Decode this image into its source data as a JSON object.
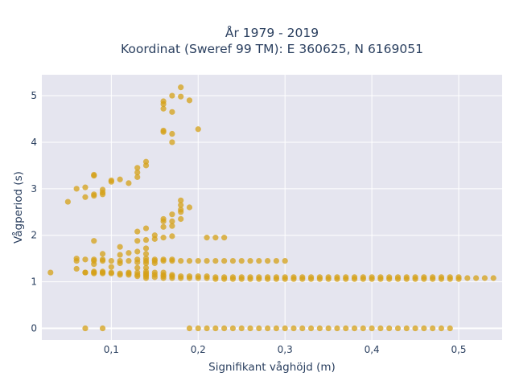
{
  "chart_data": {
    "type": "scatter",
    "title_line1": "År 1979 - 2019",
    "title_line2": "Koordinat (Sweref 99 TM): E 360625, N 6169051",
    "xlabel": "Signifikant våghöjd (m)",
    "ylabel": "Vågperiod (s)",
    "xlim": [
      0.02,
      0.55
    ],
    "ylim": [
      -0.25,
      5.45
    ],
    "x_ticks": [
      0.1,
      0.2,
      0.3,
      0.4,
      0.5
    ],
    "x_tick_labels": [
      "0,1",
      "0,2",
      "0,3",
      "0,4",
      "0,5"
    ],
    "y_ticks": [
      0,
      1,
      2,
      3,
      4,
      5
    ],
    "y_tick_labels": [
      "0",
      "1",
      "2",
      "3",
      "4",
      "5"
    ],
    "colors": {
      "marker": "#D4A017",
      "plot_bg": "#E5E5EF",
      "grid": "#FFFFFF"
    },
    "grid": true,
    "series": [
      {
        "points": [
          [
            0.03,
            1.2
          ],
          [
            0.05,
            2.72
          ],
          [
            0.06,
            1.28
          ],
          [
            0.06,
            1.45
          ],
          [
            0.06,
            1.5
          ],
          [
            0.06,
            3.0
          ],
          [
            0.07,
            1.2
          ],
          [
            0.07,
            1.2
          ],
          [
            0.07,
            1.48
          ],
          [
            0.07,
            2.82
          ],
          [
            0.07,
            3.03
          ],
          [
            0.07,
            0.0
          ],
          [
            0.08,
            1.18
          ],
          [
            0.08,
            1.2
          ],
          [
            0.08,
            1.22
          ],
          [
            0.08,
            1.38
          ],
          [
            0.08,
            1.45
          ],
          [
            0.08,
            1.48
          ],
          [
            0.08,
            1.88
          ],
          [
            0.08,
            2.85
          ],
          [
            0.08,
            2.88
          ],
          [
            0.08,
            3.28
          ],
          [
            0.08,
            3.3
          ],
          [
            0.09,
            1.18
          ],
          [
            0.09,
            1.2
          ],
          [
            0.09,
            1.22
          ],
          [
            0.09,
            1.45
          ],
          [
            0.09,
            1.48
          ],
          [
            0.09,
            1.6
          ],
          [
            0.09,
            2.88
          ],
          [
            0.09,
            2.92
          ],
          [
            0.09,
            2.98
          ],
          [
            0.09,
            0.0
          ],
          [
            0.1,
            1.18
          ],
          [
            0.1,
            1.2
          ],
          [
            0.1,
            1.32
          ],
          [
            0.1,
            1.45
          ],
          [
            0.1,
            3.15
          ],
          [
            0.1,
            3.18
          ],
          [
            0.11,
            1.15
          ],
          [
            0.11,
            1.18
          ],
          [
            0.11,
            1.4
          ],
          [
            0.11,
            1.45
          ],
          [
            0.11,
            1.58
          ],
          [
            0.11,
            1.75
          ],
          [
            0.11,
            3.2
          ],
          [
            0.12,
            1.15
          ],
          [
            0.12,
            1.18
          ],
          [
            0.12,
            1.2
          ],
          [
            0.12,
            1.45
          ],
          [
            0.12,
            1.62
          ],
          [
            0.12,
            3.12
          ],
          [
            0.13,
            1.12
          ],
          [
            0.13,
            1.15
          ],
          [
            0.13,
            1.2
          ],
          [
            0.13,
            1.3
          ],
          [
            0.13,
            1.42
          ],
          [
            0.13,
            1.48
          ],
          [
            0.13,
            1.65
          ],
          [
            0.13,
            1.88
          ],
          [
            0.13,
            2.08
          ],
          [
            0.13,
            3.25
          ],
          [
            0.13,
            3.35
          ],
          [
            0.13,
            3.45
          ],
          [
            0.14,
            1.08
          ],
          [
            0.14,
            1.12
          ],
          [
            0.14,
            1.15
          ],
          [
            0.14,
            1.18
          ],
          [
            0.14,
            1.22
          ],
          [
            0.14,
            1.3
          ],
          [
            0.14,
            1.4
          ],
          [
            0.14,
            1.45
          ],
          [
            0.14,
            1.5
          ],
          [
            0.14,
            1.6
          ],
          [
            0.14,
            1.72
          ],
          [
            0.14,
            1.9
          ],
          [
            0.14,
            2.15
          ],
          [
            0.14,
            3.5
          ],
          [
            0.14,
            3.58
          ],
          [
            0.15,
            1.1
          ],
          [
            0.15,
            1.15
          ],
          [
            0.15,
            1.2
          ],
          [
            0.15,
            1.4
          ],
          [
            0.15,
            1.45
          ],
          [
            0.15,
            1.48
          ],
          [
            0.15,
            1.92
          ],
          [
            0.15,
            2.0
          ],
          [
            0.16,
            1.08
          ],
          [
            0.16,
            1.12
          ],
          [
            0.16,
            1.15
          ],
          [
            0.16,
            1.2
          ],
          [
            0.16,
            1.45
          ],
          [
            0.16,
            1.48
          ],
          [
            0.16,
            1.95
          ],
          [
            0.16,
            2.18
          ],
          [
            0.16,
            2.3
          ],
          [
            0.16,
            2.35
          ],
          [
            0.16,
            4.22
          ],
          [
            0.16,
            4.25
          ],
          [
            0.16,
            4.72
          ],
          [
            0.16,
            4.82
          ],
          [
            0.16,
            4.88
          ],
          [
            0.17,
            1.08
          ],
          [
            0.17,
            1.12
          ],
          [
            0.17,
            1.15
          ],
          [
            0.17,
            1.45
          ],
          [
            0.17,
            1.48
          ],
          [
            0.17,
            1.98
          ],
          [
            0.17,
            2.2
          ],
          [
            0.17,
            2.3
          ],
          [
            0.17,
            2.45
          ],
          [
            0.17,
            4.0
          ],
          [
            0.17,
            4.18
          ],
          [
            0.17,
            4.65
          ],
          [
            0.17,
            5.0
          ],
          [
            0.18,
            1.08
          ],
          [
            0.18,
            1.12
          ],
          [
            0.18,
            1.45
          ],
          [
            0.18,
            2.35
          ],
          [
            0.18,
            2.5
          ],
          [
            0.18,
            2.55
          ],
          [
            0.18,
            2.65
          ],
          [
            0.18,
            2.75
          ],
          [
            0.18,
            4.98
          ],
          [
            0.18,
            5.18
          ],
          [
            0.19,
            1.08
          ],
          [
            0.19,
            1.12
          ],
          [
            0.19,
            1.45
          ],
          [
            0.19,
            2.6
          ],
          [
            0.19,
            4.9
          ],
          [
            0.19,
            0.0
          ],
          [
            0.2,
            1.08
          ],
          [
            0.2,
            1.12
          ],
          [
            0.2,
            1.45
          ],
          [
            0.2,
            4.28
          ],
          [
            0.2,
            0.0
          ],
          [
            0.21,
            1.08
          ],
          [
            0.21,
            1.12
          ],
          [
            0.21,
            1.45
          ],
          [
            0.21,
            1.95
          ],
          [
            0.21,
            0.0
          ],
          [
            0.22,
            1.06
          ],
          [
            0.22,
            1.1
          ],
          [
            0.22,
            1.45
          ],
          [
            0.22,
            1.95
          ],
          [
            0.22,
            0.0
          ],
          [
            0.23,
            1.06
          ],
          [
            0.23,
            1.1
          ],
          [
            0.23,
            1.45
          ],
          [
            0.23,
            1.95
          ],
          [
            0.23,
            0.0
          ],
          [
            0.24,
            1.06
          ],
          [
            0.24,
            1.1
          ],
          [
            0.24,
            1.45
          ],
          [
            0.24,
            0.0
          ],
          [
            0.25,
            1.06
          ],
          [
            0.25,
            1.1
          ],
          [
            0.25,
            1.45
          ],
          [
            0.25,
            0.0
          ],
          [
            0.26,
            1.06
          ],
          [
            0.26,
            1.1
          ],
          [
            0.26,
            1.45
          ],
          [
            0.26,
            0.0
          ],
          [
            0.27,
            1.06
          ],
          [
            0.27,
            1.1
          ],
          [
            0.27,
            1.45
          ],
          [
            0.27,
            0.0
          ],
          [
            0.28,
            1.06
          ],
          [
            0.28,
            1.1
          ],
          [
            0.28,
            1.45
          ],
          [
            0.28,
            0.0
          ],
          [
            0.29,
            1.06
          ],
          [
            0.29,
            1.1
          ],
          [
            0.29,
            1.45
          ],
          [
            0.29,
            0.0
          ],
          [
            0.3,
            1.06
          ],
          [
            0.3,
            1.1
          ],
          [
            0.3,
            1.45
          ],
          [
            0.3,
            0.0
          ],
          [
            0.31,
            1.06
          ],
          [
            0.31,
            1.1
          ],
          [
            0.31,
            0.0
          ],
          [
            0.32,
            1.06
          ],
          [
            0.32,
            1.1
          ],
          [
            0.32,
            0.0
          ],
          [
            0.33,
            1.06
          ],
          [
            0.33,
            1.1
          ],
          [
            0.33,
            0.0
          ],
          [
            0.34,
            1.06
          ],
          [
            0.34,
            1.1
          ],
          [
            0.34,
            0.0
          ],
          [
            0.35,
            1.06
          ],
          [
            0.35,
            1.1
          ],
          [
            0.35,
            0.0
          ],
          [
            0.36,
            1.06
          ],
          [
            0.36,
            1.1
          ],
          [
            0.36,
            0.0
          ],
          [
            0.37,
            1.06
          ],
          [
            0.37,
            1.1
          ],
          [
            0.37,
            0.0
          ],
          [
            0.38,
            1.06
          ],
          [
            0.38,
            1.1
          ],
          [
            0.38,
            0.0
          ],
          [
            0.39,
            1.06
          ],
          [
            0.39,
            1.1
          ],
          [
            0.39,
            0.0
          ],
          [
            0.4,
            1.06
          ],
          [
            0.4,
            1.1
          ],
          [
            0.4,
            0.0
          ],
          [
            0.41,
            1.06
          ],
          [
            0.41,
            1.1
          ],
          [
            0.41,
            0.0
          ],
          [
            0.42,
            1.06
          ],
          [
            0.42,
            1.1
          ],
          [
            0.42,
            0.0
          ],
          [
            0.43,
            1.06
          ],
          [
            0.43,
            1.1
          ],
          [
            0.43,
            0.0
          ],
          [
            0.44,
            1.06
          ],
          [
            0.44,
            1.1
          ],
          [
            0.44,
            0.0
          ],
          [
            0.45,
            1.06
          ],
          [
            0.45,
            1.1
          ],
          [
            0.45,
            0.0
          ],
          [
            0.46,
            1.06
          ],
          [
            0.46,
            1.1
          ],
          [
            0.46,
            0.0
          ],
          [
            0.47,
            1.06
          ],
          [
            0.47,
            1.1
          ],
          [
            0.47,
            0.0
          ],
          [
            0.48,
            1.06
          ],
          [
            0.48,
            1.1
          ],
          [
            0.48,
            0.0
          ],
          [
            0.49,
            1.06
          ],
          [
            0.49,
            1.1
          ],
          [
            0.49,
            0.0
          ],
          [
            0.5,
            1.06
          ],
          [
            0.5,
            1.1
          ],
          [
            0.51,
            1.08
          ],
          [
            0.52,
            1.08
          ],
          [
            0.53,
            1.08
          ],
          [
            0.54,
            1.08
          ]
        ]
      }
    ]
  }
}
